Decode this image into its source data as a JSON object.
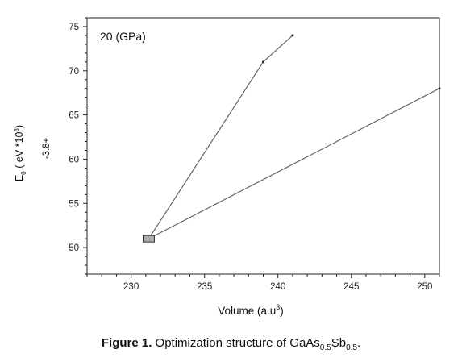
{
  "chart_data": {
    "type": "line",
    "annotation": "20 (GPa)",
    "xlabel": "Volume (a.u",
    "xlabel_sup": "3",
    "xlabel_tail": ")",
    "ylabel": "E",
    "ylabel_sub": "0",
    "ylabel_tail": " ( eV *10",
    "ylabel_sup": "3",
    "ylabel_close": ")",
    "ylabel_offset": "-3.8+",
    "xlim": [
      227,
      251
    ],
    "ylim": [
      47,
      76
    ],
    "x_ticks": [
      "230",
      "235",
      "240",
      "245",
      "250"
    ],
    "y_ticks": [
      "50",
      "55",
      "60",
      "65",
      "70",
      "75"
    ],
    "grid": false,
    "line_color": "#666666",
    "marker_color": "#aaaaaa",
    "series": [
      {
        "points": [
          {
            "x": 231.2,
            "y": 51.0
          },
          {
            "x": 239.0,
            "y": 71.0
          },
          {
            "x": 241.0,
            "y": 74.0
          }
        ]
      },
      {
        "points": [
          {
            "x": 231.2,
            "y": 51.0
          },
          {
            "x": 251.0,
            "y": 68.0
          }
        ]
      }
    ],
    "box_marker": {
      "x": 231.2,
      "y": 51.0
    }
  },
  "caption": {
    "label": "Figure 1.",
    "text": " Optimization structure of GaAs",
    "sub1": "0.5",
    "mid": "Sb",
    "sub2": "0.5",
    "end": "."
  }
}
